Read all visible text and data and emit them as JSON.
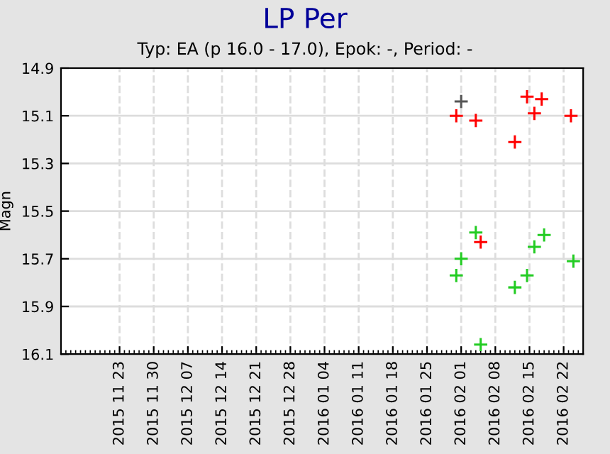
{
  "chart_data": {
    "type": "scatter",
    "title": "LP Per",
    "subtitle": "Typ: EA (p 16.0 - 17.0), Epok: -, Period: -",
    "ylabel": "Magn",
    "series": [
      {
        "color": "#ff0000",
        "x": [
          "2016-01-31",
          "2016-02-04",
          "2016-02-05",
          "2016-02-12",
          "2016-02-14T12:00",
          "2016-02-16",
          "2016-02-17T12:00",
          "2016-02-23T12:00"
        ],
        "values": [
          15.1,
          15.12,
          15.63,
          15.21,
          15.02,
          15.09,
          15.03,
          15.1
        ]
      },
      {
        "color": "#22cc22",
        "x": [
          "2016-01-31",
          "2016-02-01",
          "2016-02-04",
          "2016-02-05",
          "2016-02-12",
          "2016-02-14T12:00",
          "2016-02-16",
          "2016-02-18",
          "2016-02-24"
        ],
        "values": [
          15.77,
          15.7,
          15.59,
          16.06,
          15.82,
          15.77,
          15.65,
          15.6,
          15.71
        ]
      },
      {
        "color": "#555555",
        "x": [
          "2016-02-01"
        ],
        "values": [
          15.04
        ]
      }
    ],
    "xlim": [
      "2015-11-11",
      "2016-02-26"
    ],
    "xticks": [
      {
        "value": "2015-11-23",
        "label": "2015 11 23"
      },
      {
        "value": "2015-11-30",
        "label": "2015 11 30"
      },
      {
        "value": "2015-12-07",
        "label": "2015 12 07"
      },
      {
        "value": "2015-12-14",
        "label": "2015 12 14"
      },
      {
        "value": "2015-12-21",
        "label": "2015 12 21"
      },
      {
        "value": "2015-12-28",
        "label": "2015 12 28"
      },
      {
        "value": "2016-01-04",
        "label": "2016 01 04"
      },
      {
        "value": "2016-01-11",
        "label": "2016 01 11"
      },
      {
        "value": "2016-01-18",
        "label": "2016 01 18"
      },
      {
        "value": "2016-01-25",
        "label": "2016 01 25"
      },
      {
        "value": "2016-02-01",
        "label": "2016 02 01"
      },
      {
        "value": "2016-02-08",
        "label": "2016 02 08"
      },
      {
        "value": "2016-02-15",
        "label": "2016 02 15"
      },
      {
        "value": "2016-02-22",
        "label": "2016 02 22"
      }
    ],
    "ylim": [
      16.1,
      14.9
    ],
    "yticks": [
      14.9,
      15.1,
      15.3,
      15.5,
      15.7,
      15.9,
      16.1
    ],
    "grid": true,
    "marker": "cross"
  }
}
